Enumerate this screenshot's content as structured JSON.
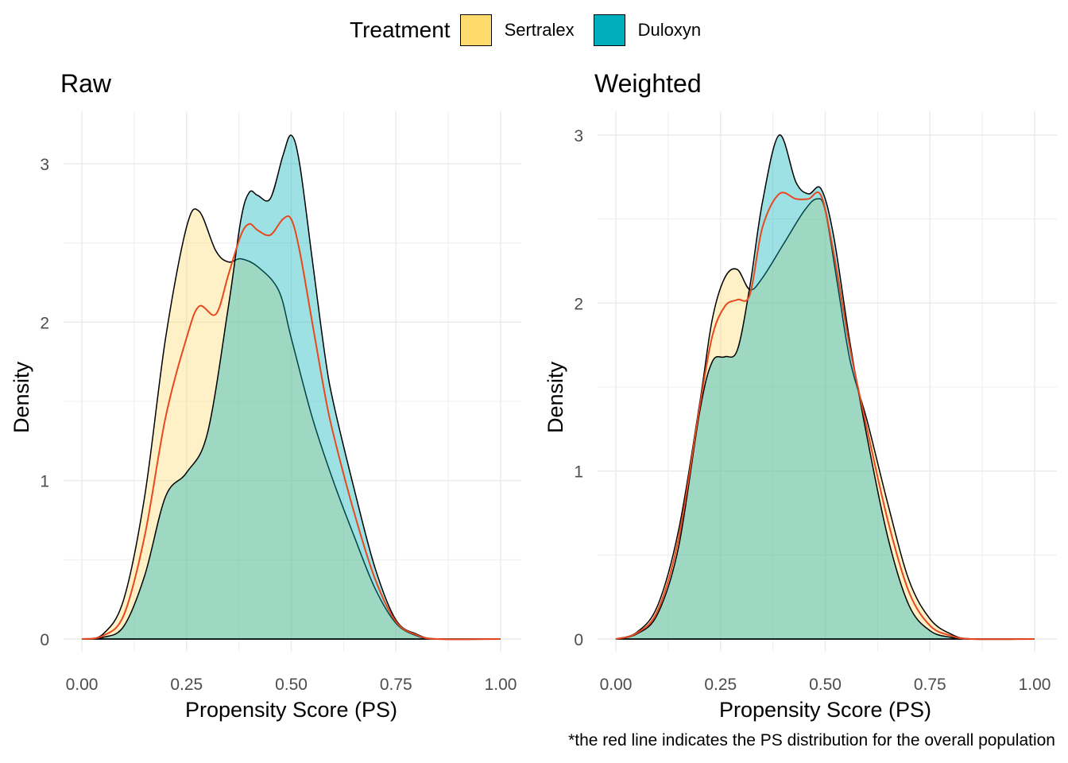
{
  "legend": {
    "title": "Treatment",
    "items": [
      {
        "label": "Sertralex",
        "color": "#FFDB6D"
      },
      {
        "label": "Duloxyn",
        "color": "#00AFBB"
      }
    ]
  },
  "footnote": "*the red line indicates the PS distribution for the overall population",
  "colors": {
    "sertralex_fill": "#FFDB6D",
    "duloxyn_fill": "#00AFBB",
    "overlap_fill": "#99D6C1",
    "overall_line": "#E8481E",
    "gridline": "#EBEBEB"
  },
  "chart_data": [
    {
      "type": "area",
      "title": "Raw",
      "xlabel": "Propensity Score (PS)",
      "ylabel": "Density",
      "xlim": [
        0,
        1
      ],
      "ylim": [
        0,
        3.25
      ],
      "x_ticks": [
        "0.00",
        "0.25",
        "0.50",
        "0.75",
        "1.00"
      ],
      "y_ticks": [
        "0",
        "1",
        "2",
        "3"
      ],
      "grid": true,
      "legend": "top",
      "series": [
        {
          "name": "Sertralex",
          "x": [
            0,
            0.05,
            0.1,
            0.15,
            0.2,
            0.25,
            0.28,
            0.32,
            0.35,
            0.38,
            0.42,
            0.47,
            0.5,
            0.55,
            0.6,
            0.65,
            0.7,
            0.75,
            0.8,
            0.85,
            1.0
          ],
          "y": [
            0,
            0.03,
            0.25,
            0.9,
            1.9,
            2.6,
            2.7,
            2.45,
            2.38,
            2.4,
            2.35,
            2.2,
            1.9,
            1.4,
            1.0,
            0.65,
            0.32,
            0.1,
            0.02,
            0.0,
            0.0
          ]
        },
        {
          "name": "Duloxyn",
          "x": [
            0,
            0.05,
            0.1,
            0.15,
            0.2,
            0.25,
            0.3,
            0.35,
            0.38,
            0.4,
            0.42,
            0.45,
            0.48,
            0.5,
            0.52,
            0.55,
            0.58,
            0.6,
            0.65,
            0.7,
            0.75,
            0.8,
            0.85,
            1.0
          ],
          "y": [
            0,
            0.01,
            0.08,
            0.4,
            0.9,
            1.05,
            1.3,
            2.1,
            2.65,
            2.82,
            2.8,
            2.78,
            3.05,
            3.18,
            3.0,
            2.4,
            1.8,
            1.5,
            0.95,
            0.45,
            0.12,
            0.03,
            0.0,
            0.0
          ]
        },
        {
          "name": "Overall",
          "x": [
            0,
            0.05,
            0.1,
            0.15,
            0.2,
            0.25,
            0.28,
            0.32,
            0.35,
            0.38,
            0.4,
            0.42,
            0.45,
            0.48,
            0.5,
            0.52,
            0.55,
            0.58,
            0.6,
            0.65,
            0.7,
            0.75,
            0.8,
            0.85,
            1.0
          ],
          "y": [
            0,
            0.02,
            0.15,
            0.65,
            1.4,
            1.9,
            2.1,
            2.05,
            2.3,
            2.55,
            2.62,
            2.58,
            2.55,
            2.65,
            2.65,
            2.45,
            2.0,
            1.55,
            1.3,
            0.8,
            0.38,
            0.11,
            0.025,
            0.0,
            0.0
          ]
        }
      ]
    },
    {
      "type": "area",
      "title": "Weighted",
      "xlabel": "Propensity Score (PS)",
      "ylabel": "Density",
      "xlim": [
        0,
        1
      ],
      "ylim": [
        0,
        3.1
      ],
      "x_ticks": [
        "0.00",
        "0.25",
        "0.50",
        "0.75",
        "1.00"
      ],
      "y_ticks": [
        "0",
        "1",
        "2",
        "3"
      ],
      "grid": true,
      "legend": "top",
      "series": [
        {
          "name": "Sertralex",
          "x": [
            0,
            0.05,
            0.1,
            0.15,
            0.2,
            0.23,
            0.26,
            0.29,
            0.32,
            0.35,
            0.4,
            0.45,
            0.48,
            0.5,
            0.53,
            0.56,
            0.6,
            0.65,
            0.7,
            0.75,
            0.8,
            0.85,
            1.0
          ],
          "y": [
            0,
            0.04,
            0.2,
            0.65,
            1.4,
            1.9,
            2.15,
            2.2,
            2.08,
            2.15,
            2.35,
            2.55,
            2.62,
            2.55,
            2.1,
            1.65,
            1.3,
            0.8,
            0.35,
            0.12,
            0.03,
            0.0,
            0.0
          ]
        },
        {
          "name": "Duloxyn",
          "x": [
            0,
            0.05,
            0.1,
            0.15,
            0.2,
            0.23,
            0.26,
            0.29,
            0.32,
            0.35,
            0.39,
            0.43,
            0.46,
            0.49,
            0.52,
            0.56,
            0.6,
            0.65,
            0.7,
            0.75,
            0.8,
            0.85,
            1.0
          ],
          "y": [
            0,
            0.03,
            0.15,
            0.55,
            1.35,
            1.65,
            1.68,
            1.72,
            2.1,
            2.6,
            3.0,
            2.72,
            2.65,
            2.68,
            2.4,
            1.75,
            1.2,
            0.6,
            0.2,
            0.05,
            0.01,
            0.0,
            0.0
          ]
        },
        {
          "name": "Overall",
          "x": [
            0,
            0.05,
            0.1,
            0.15,
            0.2,
            0.23,
            0.26,
            0.29,
            0.32,
            0.35,
            0.39,
            0.43,
            0.46,
            0.49,
            0.52,
            0.56,
            0.6,
            0.65,
            0.7,
            0.75,
            0.8,
            0.85,
            1.0
          ],
          "y": [
            0,
            0.035,
            0.17,
            0.6,
            1.38,
            1.8,
            1.98,
            2.02,
            2.05,
            2.45,
            2.65,
            2.62,
            2.62,
            2.64,
            2.3,
            1.72,
            1.25,
            0.7,
            0.28,
            0.08,
            0.02,
            0.0,
            0.0
          ]
        }
      ]
    }
  ]
}
